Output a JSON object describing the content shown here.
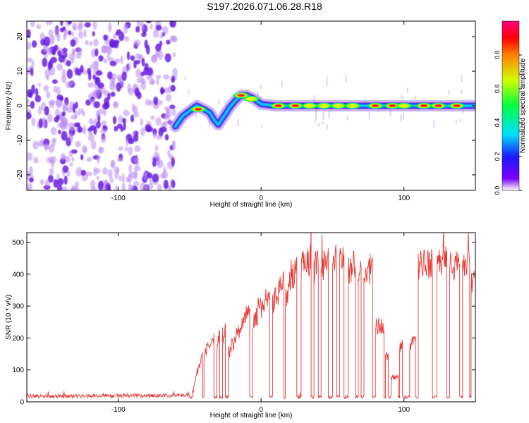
{
  "title": "S197.2026.071.06.28.R18",
  "colors": {
    "snr_line": "#e53935",
    "ridge": "#6f1fe0",
    "noise": "#7a2be8"
  },
  "chart_data": [
    {
      "type": "heatmap",
      "title": "S197.2026.071.06.28.R18",
      "xlabel": "Height of straight line (km)",
      "ylabel": "Frequency (Hz)",
      "xlim": [
        -164,
        150
      ],
      "ylim": [
        -24.5,
        24.5
      ],
      "xticks": [
        -100,
        0,
        100
      ],
      "yticks": [
        -20,
        -10,
        0,
        10,
        20
      ],
      "noise_region_x": [
        -164,
        -60
      ],
      "ridge_frequency_track": [
        {
          "x": -60,
          "y": -6
        },
        {
          "x": -55,
          "y": -3
        },
        {
          "x": -50,
          "y": -1.5
        },
        {
          "x": -45,
          "y": 0
        },
        {
          "x": -40,
          "y": -1
        },
        {
          "x": -36,
          "y": -2
        },
        {
          "x": -33,
          "y": -4
        },
        {
          "x": -30,
          "y": -5.5
        },
        {
          "x": -26,
          "y": -3
        },
        {
          "x": -22,
          "y": -0.5
        },
        {
          "x": -18,
          "y": 1.5
        },
        {
          "x": -14,
          "y": 3
        },
        {
          "x": -10,
          "y": 3
        },
        {
          "x": -5,
          "y": 2
        },
        {
          "x": 0,
          "y": 0.5
        },
        {
          "x": 10,
          "y": 0
        },
        {
          "x": 150,
          "y": 0
        }
      ],
      "ridge_peaks": [
        {
          "x": -44,
          "y": -1,
          "a": 0.85
        },
        {
          "x": -14,
          "y": 3,
          "a": 0.9
        },
        {
          "x": -7,
          "y": 2,
          "a": 0.6
        },
        {
          "x": 12,
          "y": 0,
          "a": 1.0
        },
        {
          "x": 24,
          "y": 0,
          "a": 1.0
        },
        {
          "x": 34,
          "y": 0,
          "a": 0.6
        },
        {
          "x": 44,
          "y": 0,
          "a": 0.6
        },
        {
          "x": 54,
          "y": 0,
          "a": 0.6
        },
        {
          "x": 64,
          "y": 0,
          "a": 0.6
        },
        {
          "x": 80,
          "y": 0,
          "a": 1.0
        },
        {
          "x": 92,
          "y": 0,
          "a": 1.0
        },
        {
          "x": 100,
          "y": 0,
          "a": 0.6
        },
        {
          "x": 114,
          "y": 0,
          "a": 1.0
        },
        {
          "x": 124,
          "y": 0,
          "a": 1.0
        },
        {
          "x": 137,
          "y": 0,
          "a": 1.0
        }
      ],
      "colorbar": {
        "label": "Normalized spectral amplitude",
        "range": [
          0,
          1
        ],
        "ticks": [
          0.0,
          0.2,
          0.4,
          0.6,
          0.8
        ],
        "tick_labels": [
          "0.0",
          "0.2",
          "0.4",
          "0.6",
          "0.8"
        ],
        "stops": [
          "#ffffff",
          "#7a00ff",
          "#1a1aff",
          "#00e0ff",
          "#00ff40",
          "#d0ff00",
          "#ff8000",
          "#ff0000",
          "#ff0080"
        ]
      }
    },
    {
      "type": "line",
      "xlabel": "Height of straight line (km)",
      "ylabel": "SNR (10 * v/v)",
      "xlim": [
        -164,
        150
      ],
      "ylim": [
        0,
        530
      ],
      "xticks": [
        -100,
        0,
        100
      ],
      "yticks": [
        0,
        100,
        200,
        300,
        400,
        500
      ],
      "series": [
        {
          "name": "SNR",
          "baseline": 15,
          "segments": [
            {
              "x0": -164,
              "x1": -50,
              "y0": 18,
              "y1": 20
            },
            {
              "x0": -48,
              "x1": -41,
              "y0": 30,
              "y1": 150
            },
            {
              "x0": -40,
              "x1": -33,
              "y0": 150,
              "y1": 200
            },
            {
              "x0": -31,
              "x1": -29,
              "y0": 150,
              "y1": 230
            },
            {
              "x0": -27,
              "x1": -25,
              "y0": 180,
              "y1": 250
            },
            {
              "x0": -23,
              "x1": -8,
              "y0": 150,
              "y1": 300
            },
            {
              "x0": -6,
              "x1": 6,
              "y0": 250,
              "y1": 340
            },
            {
              "x0": 8,
              "x1": 16,
              "y0": 300,
              "y1": 380
            },
            {
              "x0": 17,
              "x1": 25,
              "y0": 330,
              "y1": 420
            },
            {
              "x0": 28,
              "x1": 35,
              "y0": 420,
              "y1": 450
            },
            {
              "x0": 37,
              "x1": 40,
              "y0": 420,
              "y1": 440
            },
            {
              "x0": 42,
              "x1": 47,
              "y0": 420,
              "y1": 460
            },
            {
              "x0": 50,
              "x1": 53,
              "y0": 420,
              "y1": 450
            },
            {
              "x0": 55,
              "x1": 58,
              "y0": 420,
              "y1": 460
            },
            {
              "x0": 61,
              "x1": 66,
              "y0": 410,
              "y1": 440
            },
            {
              "x0": 68,
              "x1": 70,
              "y0": 410,
              "y1": 430
            },
            {
              "x0": 72,
              "x1": 78,
              "y0": 390,
              "y1": 430
            },
            {
              "x0": 80,
              "x1": 86,
              "y0": 240,
              "y1": 230
            },
            {
              "x0": 87,
              "x1": 89,
              "y0": 150,
              "y1": 140
            },
            {
              "x0": 91,
              "x1": 96,
              "y0": 80,
              "y1": 75
            },
            {
              "x0": 97,
              "x1": 99,
              "y0": 170,
              "y1": 160
            },
            {
              "x0": 104,
              "x1": 108,
              "y0": 180,
              "y1": 190
            },
            {
              "x0": 110,
              "x1": 120,
              "y0": 420,
              "y1": 440
            },
            {
              "x0": 123,
              "x1": 130,
              "y0": 420,
              "y1": 450
            },
            {
              "x0": 132,
              "x1": 139,
              "y0": 420,
              "y1": 430
            },
            {
              "x0": 141,
              "x1": 146,
              "y0": 440,
              "y1": 450
            },
            {
              "x0": 147,
              "x1": 150,
              "y0": 360,
              "y1": 370
            }
          ]
        }
      ]
    }
  ]
}
